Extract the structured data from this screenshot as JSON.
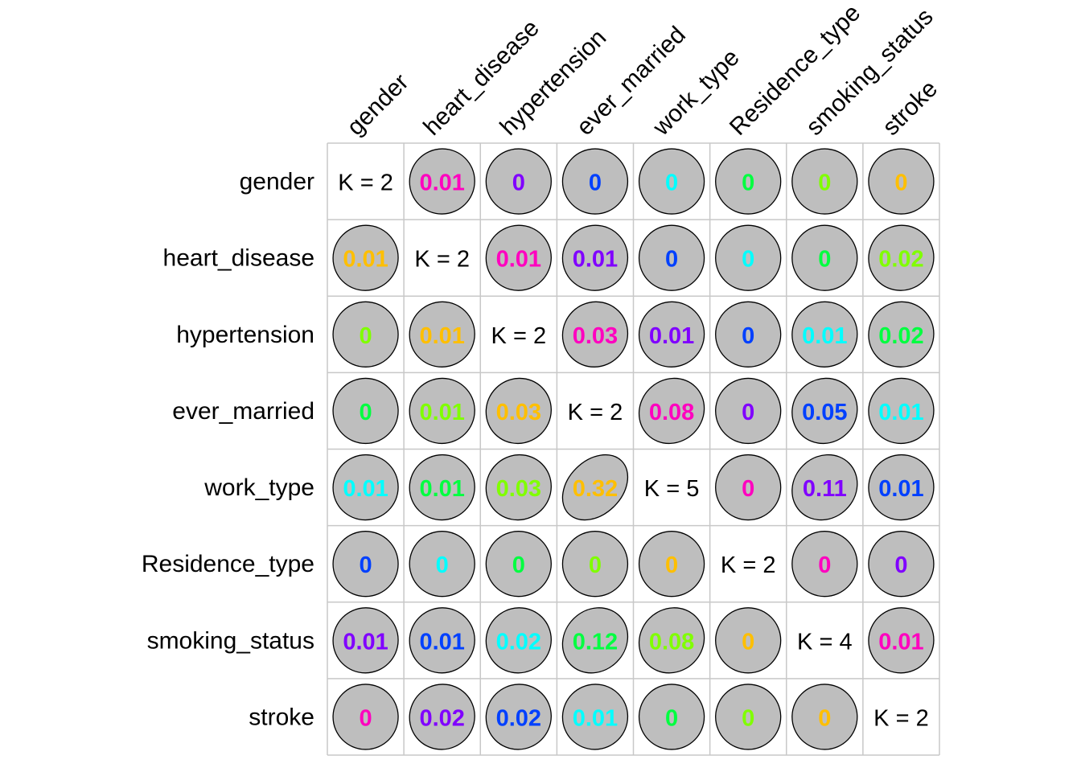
{
  "chart_data": {
    "type": "heatmap",
    "title": "",
    "labels": [
      "gender",
      "heart_disease",
      "hypertension",
      "ever_married",
      "work_type",
      "Residence_type",
      "smoking_status",
      "stroke"
    ],
    "diagonal": [
      "K = 2",
      "K = 2",
      "K = 2",
      "K = 2",
      "K = 5",
      "K = 2",
      "K = 4",
      "K = 2"
    ],
    "values": [
      [
        null,
        0.01,
        0,
        0,
        0,
        0,
        0,
        0
      ],
      [
        0.01,
        null,
        0.01,
        0.01,
        0,
        0,
        0,
        0.02
      ],
      [
        0,
        0.01,
        null,
        0.03,
        0.01,
        0,
        0.01,
        0.02
      ],
      [
        0,
        0.01,
        0.03,
        null,
        0.08,
        0,
        0.05,
        0.01
      ],
      [
        0.01,
        0.01,
        0.03,
        0.32,
        null,
        0,
        0.11,
        0.01
      ],
      [
        0,
        0,
        0,
        0,
        0,
        null,
        0,
        0
      ],
      [
        0.01,
        0.01,
        0.02,
        0.12,
        0.08,
        0,
        null,
        0.01
      ],
      [
        0,
        0.02,
        0.02,
        0.01,
        0,
        0,
        0,
        null
      ]
    ],
    "value_labels": [
      [
        null,
        "0.01",
        "0",
        "0",
        "0",
        "0",
        "0",
        "0"
      ],
      [
        "0.01",
        null,
        "0.01",
        "0.01",
        "0",
        "0",
        "0",
        "0.02"
      ],
      [
        "0",
        "0.01",
        null,
        "0.03",
        "0.01",
        "0",
        "0.01",
        "0.02"
      ],
      [
        "0",
        "0.01",
        "0.03",
        null,
        "0.08",
        "0",
        "0.05",
        "0.01"
      ],
      [
        "0.01",
        "0.01",
        "0.03",
        "0.32",
        null,
        "0",
        "0.11",
        "0.01"
      ],
      [
        "0",
        "0",
        "0",
        "0",
        "0",
        null,
        "0",
        "0"
      ],
      [
        "0.01",
        "0.01",
        "0.02",
        "0.12",
        "0.08",
        "0",
        null,
        "0.01"
      ],
      [
        "0",
        "0.02",
        "0.02",
        "0.01",
        "0",
        "0",
        "0",
        null
      ]
    ],
    "text_palette": [
      "#FF0000",
      "#FFBF00",
      "#80FF00",
      "#00FF40",
      "#00FFFF",
      "#0040FF",
      "#8000FF",
      "#FF00BF"
    ],
    "ellipse_fill": "#BEBEBE",
    "ellipse_stroke": "#000000",
    "grid_color": "#C8C8C8",
    "grid": true,
    "legend": "none"
  }
}
